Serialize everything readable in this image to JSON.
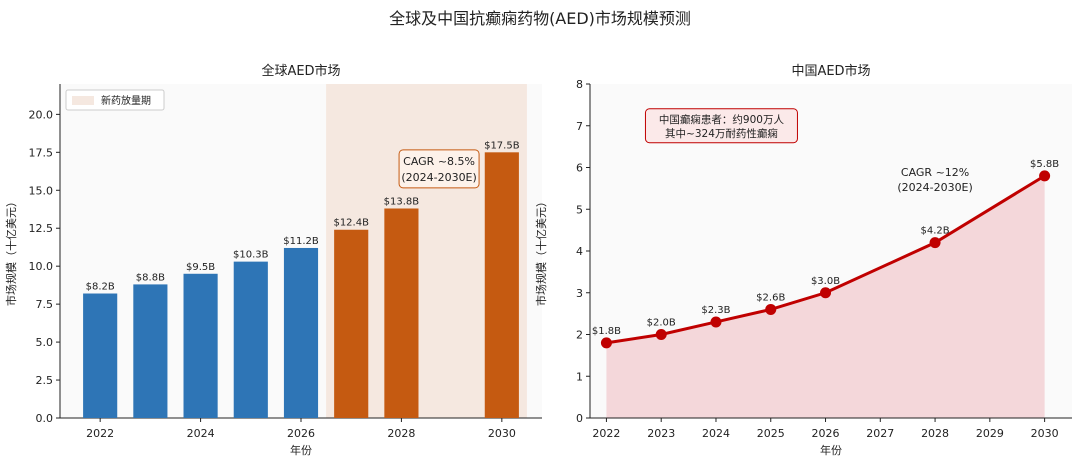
{
  "suptitle": "全球及中国抗癫痫药物(AED)市场规模预测",
  "chart_data": [
    {
      "type": "bar",
      "title": "全球AED市场",
      "xlabel": "年份",
      "ylabel": "市场规模（十亿美元）",
      "x": [
        2022,
        2023,
        2024,
        2025,
        2026,
        2027,
        2028,
        2030
      ],
      "values": [
        8.2,
        8.8,
        9.5,
        10.3,
        11.2,
        12.4,
        13.8,
        17.5
      ],
      "labels": [
        "$8.2B",
        "$8.8B",
        "$9.5B",
        "$10.3B",
        "$11.2B",
        "$12.4B",
        "$13.8B",
        "$17.5B"
      ],
      "xticks": [
        2022,
        2024,
        2026,
        2028,
        2030
      ],
      "xlim": [
        2021.2,
        2030.8
      ],
      "ylim": [
        0,
        22
      ],
      "yticks": [
        0.0,
        2.5,
        5.0,
        7.5,
        10.0,
        12.5,
        15.0,
        17.5,
        20.0
      ],
      "colors": {
        "historical": "#2e75b6",
        "forecast": "#c55a11",
        "span": "#f5e8e0"
      },
      "forecast_start_index": 5,
      "span_range": [
        2026.5,
        2030.5
      ],
      "legend": {
        "label": "新药放量期",
        "position": "top-left"
      },
      "annotation": {
        "lines": [
          "CAGR ~8.5%",
          "(2024-2030E)"
        ],
        "color": "#c55a11",
        "x": 2028.75,
        "y": 17.2
      }
    },
    {
      "type": "line",
      "title": "中国AED市场",
      "xlabel": "年份",
      "ylabel": "市场规模（十亿美元）",
      "x": [
        2022,
        2023,
        2024,
        2025,
        2026,
        2028,
        2030
      ],
      "values": [
        1.8,
        2.0,
        2.3,
        2.6,
        3.0,
        4.2,
        5.8
      ],
      "labels": [
        "$1.8B",
        "$2.0B",
        "$2.3B",
        "$2.6B",
        "$3.0B",
        "$4.2B",
        "$5.8B"
      ],
      "xticks": [
        2022,
        2023,
        2024,
        2025,
        2026,
        2027,
        2028,
        2029,
        2030
      ],
      "xlim": [
        2021.7,
        2030.5
      ],
      "ylim": [
        0,
        8
      ],
      "yticks": [
        0,
        1,
        2,
        3,
        4,
        5,
        6,
        7,
        8
      ],
      "colors": {
        "line": "#c00000",
        "fill": "#f2d0d3"
      },
      "annotation": {
        "lines": [
          "CAGR ~12%",
          "(2024-2030E)"
        ],
        "color": "#c00000",
        "x": 2028.0,
        "y": 5.8
      },
      "note": {
        "lines": [
          "中国癫痫患者：约900万人",
          "其中~324万耐药性癫痫"
        ],
        "color": "#c00000",
        "x": 2024.1,
        "y": 7.0
      }
    }
  ]
}
